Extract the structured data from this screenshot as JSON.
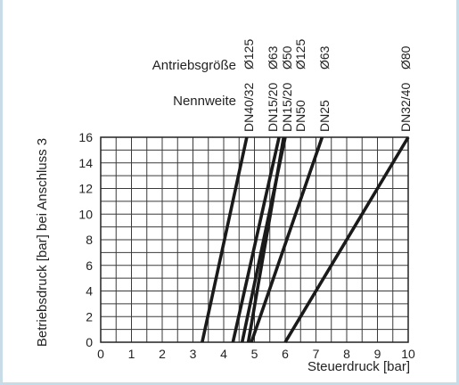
{
  "chart_data": {
    "type": "line",
    "xlabel": "Steuerdruck [bar]",
    "ylabel": "Betriebsdruck [bar] bei Anschluss 3",
    "xlim": [
      0,
      10
    ],
    "ylim": [
      0,
      16
    ],
    "x_ticks": [
      "0",
      "1",
      "2",
      "3",
      "4",
      "5",
      "6",
      "7",
      "8",
      "9",
      "10"
    ],
    "y_ticks": [
      "0",
      "2",
      "4",
      "6",
      "8",
      "10",
      "12",
      "14",
      "16"
    ],
    "grid": true,
    "header_labels": {
      "antrieb": "Antriebsgröße",
      "nennweite": "Nennweite"
    },
    "series": [
      {
        "name": "DN40/32 Ø125",
        "nennweite": "DN40/32",
        "antrieb": "Ø125",
        "x": [
          3.3,
          4.75
        ],
        "y": [
          0,
          16
        ]
      },
      {
        "name": "DN15/20 Ø63",
        "nennweite": "DN15/20",
        "antrieb": "Ø63",
        "x": [
          4.3,
          5.8
        ],
        "y": [
          0,
          16
        ]
      },
      {
        "name": "DN15/20 Ø50",
        "nennweite": "DN15/20",
        "antrieb": "Ø50",
        "x": [
          4.6,
          6.0
        ],
        "y": [
          0,
          16
        ]
      },
      {
        "name": "DN50 Ø125",
        "nennweite": "DN50",
        "antrieb": "Ø125",
        "x": [
          4.8,
          5.95
        ],
        "y": [
          0,
          16
        ]
      },
      {
        "name": "DN25 Ø63",
        "nennweite": "DN25",
        "antrieb": "Ø63",
        "x": [
          4.9,
          7.2
        ],
        "y": [
          0,
          16
        ]
      },
      {
        "name": "DN32/40 Ø80",
        "nennweite": "DN32/40",
        "antrieb": "Ø80",
        "x": [
          6.0,
          10.0
        ],
        "y": [
          0,
          16
        ]
      }
    ]
  }
}
